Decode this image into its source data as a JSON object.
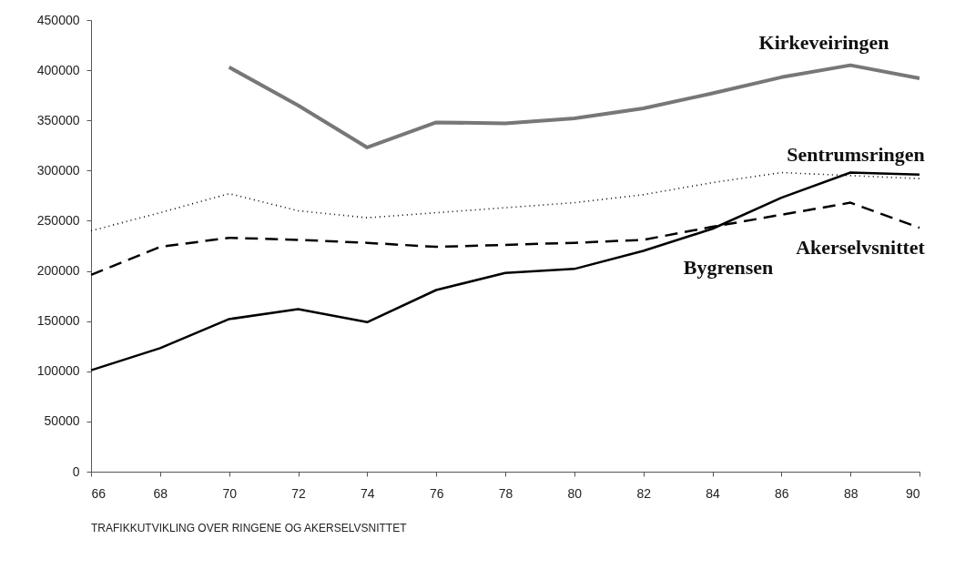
{
  "chart_data": {
    "type": "line",
    "x": [
      66,
      68,
      70,
      72,
      74,
      76,
      78,
      80,
      82,
      84,
      86,
      88,
      90
    ],
    "series": [
      {
        "name": "Kirkeveiringen",
        "color": "#777777",
        "line_style": "solid",
        "values": [
          null,
          null,
          403000,
          365000,
          323000,
          348000,
          347000,
          352000,
          362000,
          377000,
          393000,
          405000,
          392000
        ]
      },
      {
        "name": "Sentrumsringen",
        "color": "#000000",
        "line_style": "dotted",
        "values": [
          240000,
          258000,
          277000,
          260000,
          253000,
          258000,
          263000,
          268000,
          276000,
          288000,
          298000,
          295000,
          292000
        ]
      },
      {
        "name": "Akerselvsnittet",
        "color": "#000000",
        "line_style": "dashed",
        "values": [
          196000,
          224000,
          233000,
          231000,
          228000,
          224000,
          226000,
          228000,
          231000,
          244000,
          256000,
          268000,
          243000
        ]
      },
      {
        "name": "Bygrensen",
        "color": "#000000",
        "line_style": "solid",
        "values": [
          101000,
          123000,
          152000,
          162000,
          149000,
          181000,
          198000,
          202000,
          220000,
          242000,
          273000,
          298000,
          296000
        ]
      }
    ],
    "xlim": [
      66,
      90
    ],
    "xticks": [
      66,
      68,
      70,
      72,
      74,
      76,
      78,
      80,
      82,
      84,
      86,
      88,
      90
    ],
    "ylim": [
      0,
      450000
    ],
    "yticks": [
      0,
      50000,
      100000,
      150000,
      200000,
      250000,
      300000,
      350000,
      400000,
      450000
    ],
    "grid": false,
    "legend": false,
    "marker": "none",
    "annotations": [
      "TRAFIKKUTVIKLING OVER RINGENE OG AKERSELVSNITTET"
    ]
  }
}
